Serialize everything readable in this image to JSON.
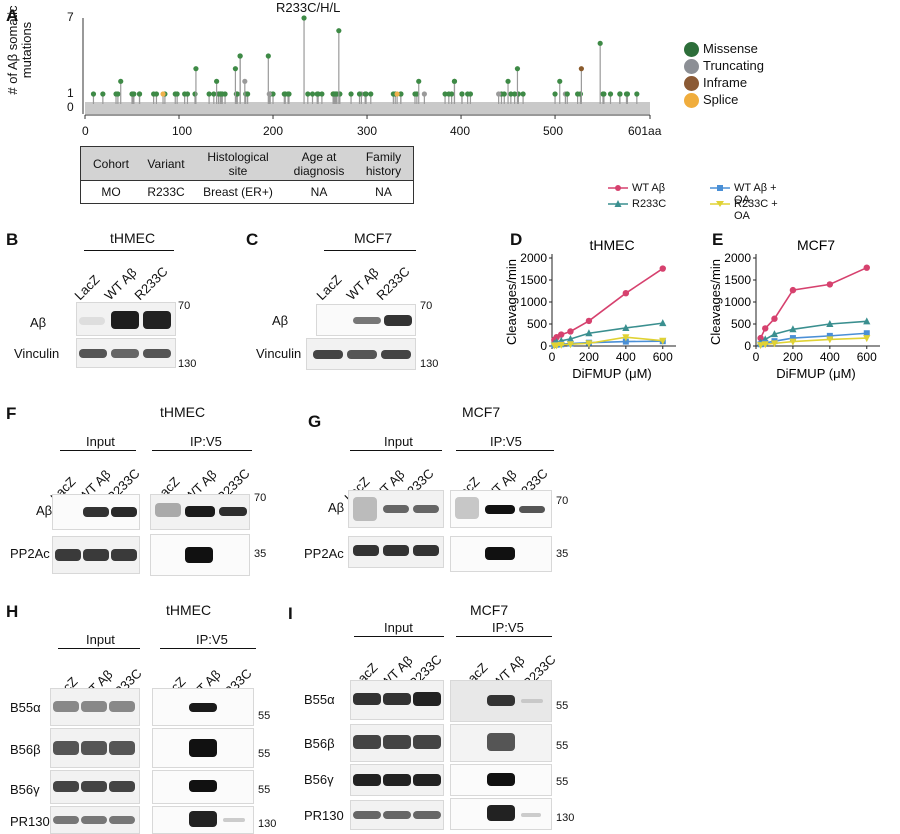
{
  "panels": {
    "A": "A",
    "B": "B",
    "C": "C",
    "D": "D",
    "E": "E",
    "F": "F",
    "G": "G",
    "H": "H",
    "I": "I"
  },
  "lollipop": {
    "highlight_label": "R233C/H/L",
    "ylabel": "# of Aβ somatic mutations",
    "yticks": [
      "0",
      "1",
      "7"
    ],
    "xticks": [
      "0",
      "100",
      "200",
      "300",
      "400",
      "500",
      "601aa"
    ],
    "colors": {
      "missense": "#3e8a46",
      "truncating": "#9a9a9a",
      "inframe": "#8a5a2b",
      "splice": "#f0b14c",
      "stem": "#9a9a9a"
    },
    "legend": [
      {
        "label": "Missense",
        "color": "#2d6e3a"
      },
      {
        "label": "Truncating",
        "color": "#8c8f95"
      },
      {
        "label": "Inframe",
        "color": "#8b5a35"
      },
      {
        "label": "Splice",
        "color": "#f0ad3d"
      }
    ]
  },
  "info_table": {
    "headers": [
      "Cohort",
      "Variant",
      "Histological site",
      "Age at diagnosis",
      "Family history"
    ],
    "row": [
      "MO",
      "R233C",
      "Breast (ER+)",
      "NA",
      "NA"
    ]
  },
  "blots": {
    "thmec": "tHMEC",
    "mcf7": "MCF7",
    "lanes": [
      "LacZ",
      "WT Aβ",
      "R233C"
    ],
    "input": "Input",
    "ip": "IP:V5",
    "ab": "Aβ",
    "vinculin": "Vinculin",
    "pp2ac": "PP2Ac",
    "b55a": "B55α",
    "b56b": "B56β",
    "b56g": "B56γ",
    "pr130": "PR130",
    "mw70": "70",
    "mw130": "130",
    "mw35": "35",
    "mw55": "55"
  },
  "kinetics_legend": {
    "wt": "WT Aβ",
    "r233c": "R233C",
    "wt_oa": "WT Aβ + OA",
    "r233c_oa": "R233C + OA"
  },
  "chart_data": [
    {
      "type": "scatter",
      "title": "tHMEC",
      "xlabel": "DiFMUP (μM)",
      "ylabel": "Cleavages/min",
      "xlim": [
        0,
        650
      ],
      "ylim": [
        0,
        2000
      ],
      "xticks": [
        0,
        200,
        400,
        600
      ],
      "yticks": [
        0,
        500,
        1000,
        1500,
        2000
      ],
      "series": [
        {
          "name": "WT Aβ",
          "color": "#d6416e",
          "x": [
            12.5,
            25,
            50,
            100,
            200,
            400,
            600
          ],
          "y": [
            140,
            200,
            260,
            330,
            570,
            1200,
            1760
          ]
        },
        {
          "name": "R233C",
          "color": "#3a8f8f",
          "x": [
            12.5,
            25,
            50,
            100,
            200,
            400,
            600
          ],
          "y": [
            60,
            90,
            120,
            160,
            290,
            410,
            520
          ]
        },
        {
          "name": "WT Aβ + OA",
          "color": "#4a8fd6",
          "x": [
            12.5,
            25,
            50,
            100,
            200,
            400,
            600
          ],
          "y": [
            20,
            30,
            40,
            55,
            75,
            100,
            110
          ]
        },
        {
          "name": "R233C + OA",
          "color": "#e0d234",
          "x": [
            12.5,
            25,
            50,
            100,
            200,
            400,
            600
          ],
          "y": [
            10,
            15,
            25,
            40,
            60,
            200,
            120
          ]
        }
      ]
    },
    {
      "type": "scatter",
      "title": "MCF7",
      "xlabel": "DiFMUP (μM)",
      "ylabel": "Cleavages/min",
      "xlim": [
        0,
        650
      ],
      "ylim": [
        0,
        2000
      ],
      "xticks": [
        0,
        200,
        400,
        600
      ],
      "yticks": [
        0,
        500,
        1000,
        1500,
        2000
      ],
      "series": [
        {
          "name": "WT Aβ",
          "color": "#d6416e",
          "x": [
            25,
            50,
            100,
            200,
            400,
            600
          ],
          "y": [
            180,
            400,
            620,
            1270,
            1400,
            1780
          ]
        },
        {
          "name": "R233C",
          "color": "#3a8f8f",
          "x": [
            25,
            50,
            100,
            200,
            400,
            600
          ],
          "y": [
            80,
            150,
            270,
            380,
            500,
            560
          ]
        },
        {
          "name": "WT Aβ + OA",
          "color": "#4a8fd6",
          "x": [
            25,
            50,
            100,
            200,
            400,
            600
          ],
          "y": [
            40,
            70,
            110,
            180,
            230,
            290
          ]
        },
        {
          "name": "R233C + OA",
          "color": "#e0d234",
          "x": [
            25,
            50,
            100,
            200,
            400,
            600
          ],
          "y": [
            20,
            40,
            60,
            100,
            150,
            180
          ]
        }
      ]
    }
  ]
}
